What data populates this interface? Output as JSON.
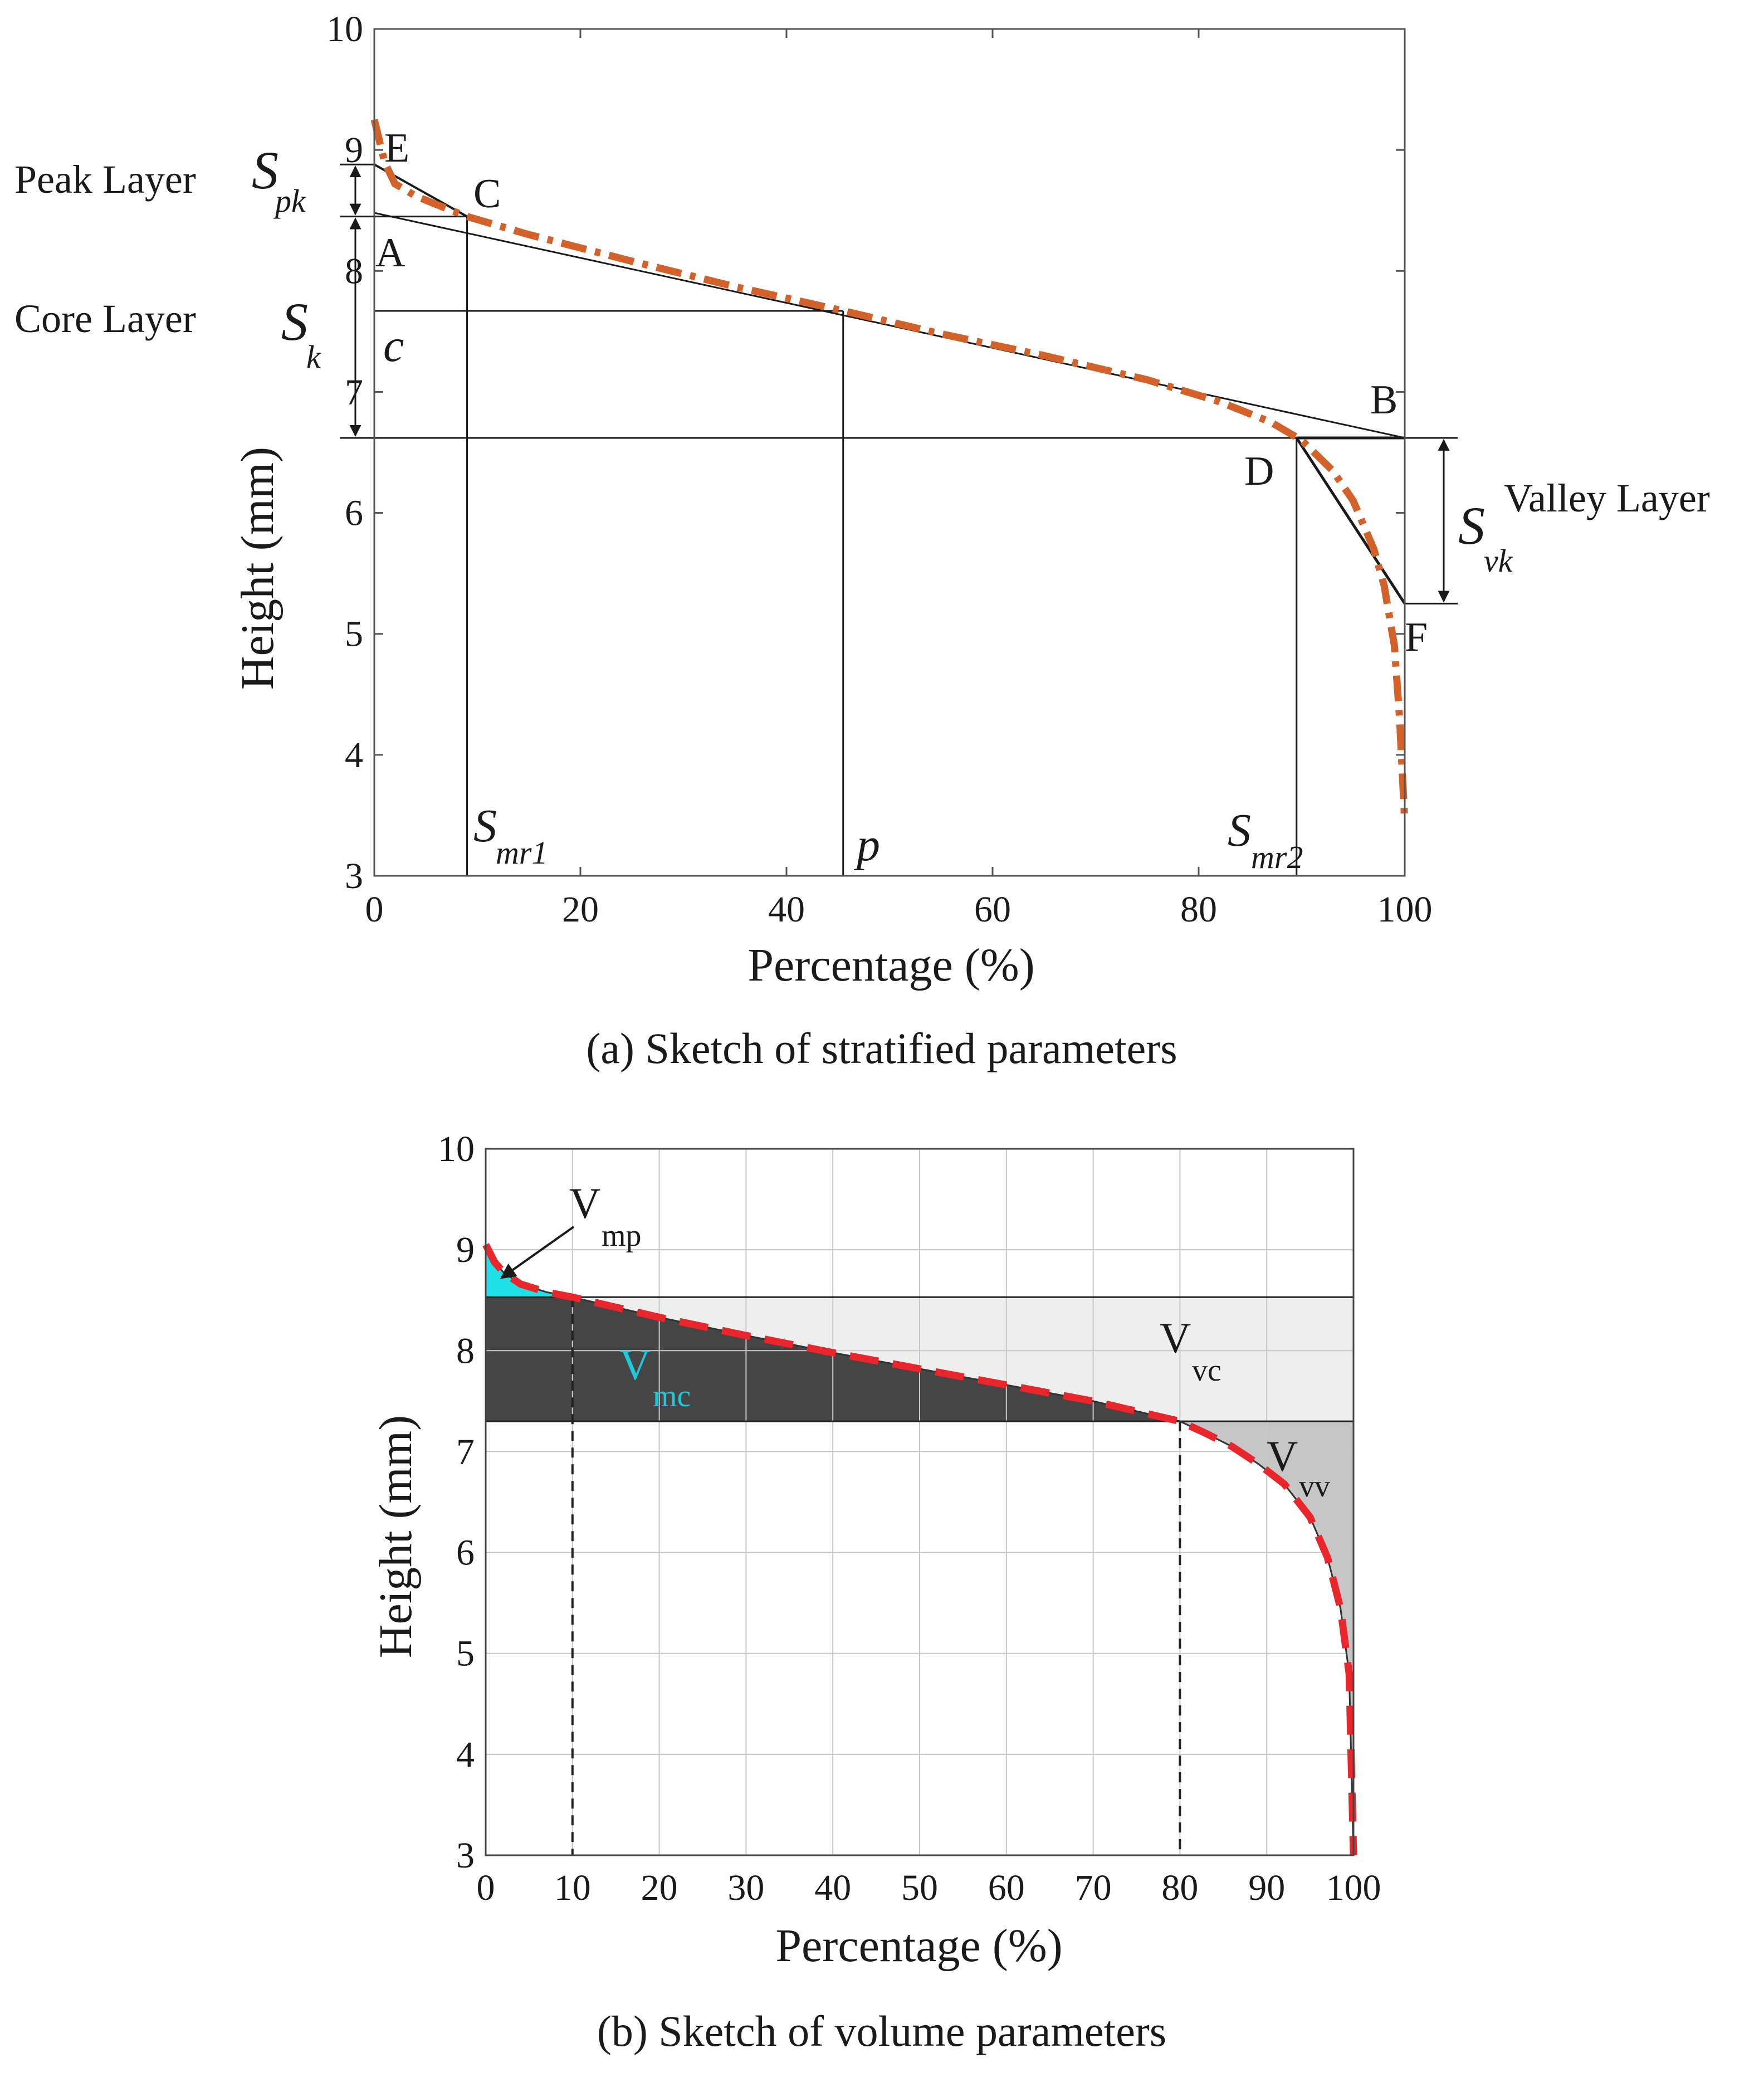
{
  "colors": {
    "axis": "#1a1a1a",
    "grid": "#c8c8c8",
    "curve_a": "#d2622a",
    "curve_b": "#e8262b",
    "peak_fill": "#1ee0e6",
    "core_fill": "#454545",
    "void_core_fill": "#eeeeee",
    "valley_fill": "#c6c6c6",
    "vmc_label": "#1ec9d8"
  },
  "chart_data": [
    {
      "type": "line",
      "caption": "(a) Sketch of stratified parameters",
      "xlabel": "Percentage (%)",
      "ylabel": "Height (mm)",
      "xlim": [
        0,
        100
      ],
      "ylim": [
        3,
        10
      ],
      "x_ticks": [
        "0",
        "20",
        "40",
        "60",
        "80",
        "100"
      ],
      "y_ticks": [
        "3",
        "4",
        "5",
        "6",
        "7",
        "8",
        "9",
        "10"
      ],
      "grid": false,
      "series": [
        {
          "style": "dash-dot",
          "x": [
            0,
            1,
            2,
            4,
            6,
            9,
            15,
            25,
            35,
            45.5,
            55,
            65,
            75,
            82,
            87,
            90,
            93,
            95,
            97,
            98,
            99,
            99.5,
            100
          ],
          "y": [
            9.25,
            8.9,
            8.72,
            8.62,
            8.55,
            8.45,
            8.3,
            8.08,
            7.87,
            7.67,
            7.48,
            7.3,
            7.1,
            6.92,
            6.75,
            6.6,
            6.35,
            6.1,
            5.7,
            5.4,
            4.9,
            4.3,
            3.45
          ]
        }
      ],
      "construction_lines": {
        "equivalent_line": {
          "x": [
            0,
            100
          ],
          "y": [
            8.48,
            6.62
          ]
        },
        "peak_triangle": {
          "x": [
            0,
            9
          ],
          "y": [
            8.88,
            8.45
          ]
        },
        "valley_triangle": {
          "x": [
            89.5,
            100
          ],
          "y": [
            6.62,
            5.25
          ]
        },
        "levels": {
          "y_c": 8.45,
          "y_k_top": 7.67,
          "y_d": 6.62,
          "y_f": 5.25,
          "y_e": 8.88
        },
        "verticals": {
          "smr1": 9,
          "p": 45.5,
          "smr2": 89.5
        }
      },
      "point_labels": {
        "E": "E",
        "C": "C",
        "A": "A",
        "B": "B",
        "D": "D",
        "F": "F",
        "c": "c"
      },
      "annotations": {
        "peak_layer": "Peak Layer",
        "core_layer": "Core Layer",
        "valley_layer": "Valley Layer",
        "spk_main": "S",
        "spk_sub": "pk",
        "sk_main": "S",
        "sk_sub": "k",
        "svk_main": "S",
        "svk_sub": "vk",
        "smr1_main": "S",
        "smr1_sub": "mr1",
        "smr2_main": "S",
        "smr2_sub": "mr2",
        "p": "p"
      }
    },
    {
      "type": "area",
      "caption": "(b) Sketch of volume parameters",
      "xlabel": "Percentage (%)",
      "ylabel": "Height (mm)",
      "xlim": [
        0,
        100
      ],
      "ylim": [
        3,
        10
      ],
      "x_ticks": [
        "0",
        "10",
        "20",
        "30",
        "40",
        "50",
        "60",
        "70",
        "80",
        "90",
        "100"
      ],
      "y_ticks": [
        "3",
        "4",
        "5",
        "6",
        "7",
        "8",
        "9",
        "10"
      ],
      "grid": true,
      "upper_level": 8.53,
      "lower_level": 7.3,
      "mr1": 10,
      "mr2": 80,
      "series": [
        {
          "style": "dashed",
          "x": [
            0,
            1,
            2,
            4,
            7,
            10,
            15,
            20,
            30,
            40,
            50,
            60,
            70,
            75,
            80,
            83,
            86,
            89,
            92,
            95,
            97,
            98.5,
            99.5,
            100
          ],
          "y": [
            9.05,
            8.88,
            8.78,
            8.66,
            8.58,
            8.53,
            8.43,
            8.33,
            8.15,
            7.98,
            7.82,
            7.66,
            7.5,
            7.4,
            7.3,
            7.18,
            7.05,
            6.88,
            6.68,
            6.35,
            5.95,
            5.45,
            4.8,
            3.0
          ]
        }
      ],
      "annotations": {
        "vmp_main": "V",
        "vmp_sub": "mp",
        "vmc_main": "V",
        "vmc_sub": "mc",
        "vvc_main": "V",
        "vvc_sub": "vc",
        "vvv_main": "V",
        "vvv_sub": "vv"
      }
    }
  ]
}
